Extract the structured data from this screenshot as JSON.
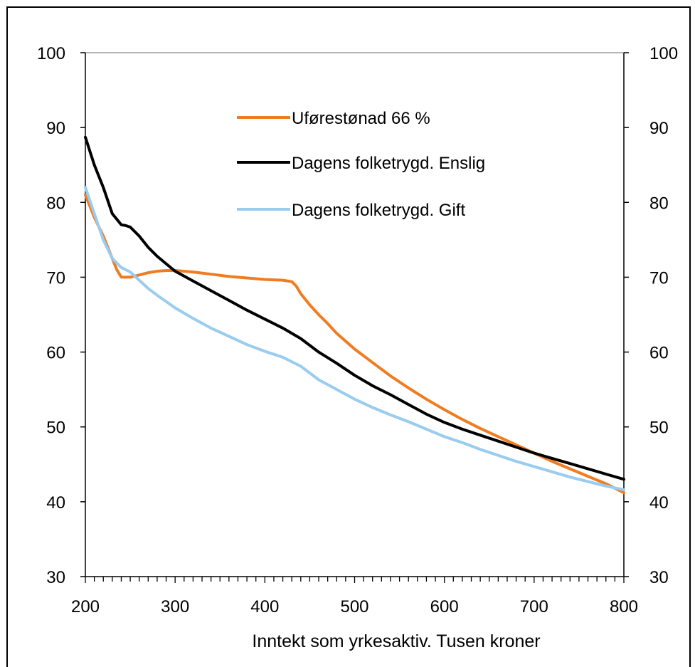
{
  "chart_data": {
    "type": "line",
    "xlabel": "Inntekt som yrkesaktiv. Tusen kroner",
    "ylabel": "",
    "xlim": [
      200,
      800
    ],
    "ylim": [
      30,
      100
    ],
    "x_ticks": [
      200,
      300,
      400,
      500,
      600,
      700,
      800
    ],
    "y_ticks": [
      30,
      40,
      50,
      60,
      70,
      80,
      90,
      100
    ],
    "secondary_y_axis": true,
    "grid": false,
    "legend_position": "top-center",
    "series": [
      {
        "name": "Uførestønad 66 %",
        "color": "#F07C22",
        "x": [
          200,
          210,
          220,
          230,
          235,
          240,
          245,
          250,
          260,
          270,
          280,
          290,
          300,
          320,
          340,
          360,
          380,
          400,
          420,
          430,
          435,
          440,
          450,
          460,
          470,
          480,
          500,
          520,
          540,
          560,
          580,
          600,
          620,
          640,
          660,
          680,
          700,
          720,
          740,
          760,
          780,
          800
        ],
        "values": [
          81.0,
          78.0,
          75.5,
          72.5,
          71.0,
          70.0,
          70.0,
          70.0,
          70.3,
          70.6,
          70.8,
          70.9,
          70.9,
          70.7,
          70.4,
          70.1,
          69.9,
          69.7,
          69.6,
          69.4,
          68.8,
          67.8,
          66.3,
          65.0,
          63.8,
          62.5,
          60.4,
          58.6,
          56.8,
          55.2,
          53.7,
          52.3,
          51.0,
          49.8,
          48.7,
          47.6,
          46.5,
          45.4,
          44.4,
          43.4,
          42.4,
          41.2
        ]
      },
      {
        "name": "Dagens folketrygd. Enslig",
        "color": "#000000",
        "x": [
          200,
          210,
          220,
          230,
          240,
          245,
          250,
          260,
          270,
          280,
          300,
          320,
          340,
          360,
          380,
          400,
          420,
          440,
          460,
          480,
          500,
          520,
          540,
          560,
          580,
          600,
          620,
          640,
          660,
          680,
          700,
          720,
          740,
          760,
          780,
          800
        ],
        "values": [
          88.7,
          85.0,
          82.0,
          78.5,
          77.0,
          76.9,
          76.7,
          75.5,
          74.0,
          72.8,
          70.8,
          69.5,
          68.2,
          66.9,
          65.6,
          64.4,
          63.2,
          61.8,
          60.0,
          58.5,
          56.9,
          55.5,
          54.3,
          53.0,
          51.7,
          50.6,
          49.7,
          48.9,
          48.1,
          47.3,
          46.5,
          45.8,
          45.1,
          44.4,
          43.7,
          43.0
        ]
      },
      {
        "name": "Dagens folketrygd. Gift",
        "color": "#99CCEF",
        "x": [
          200,
          210,
          220,
          230,
          240,
          250,
          260,
          270,
          280,
          300,
          320,
          340,
          360,
          380,
          400,
          420,
          440,
          460,
          480,
          500,
          520,
          540,
          560,
          580,
          600,
          620,
          640,
          660,
          680,
          700,
          720,
          740,
          760,
          780,
          800
        ],
        "values": [
          82.0,
          78.5,
          75.0,
          72.5,
          71.3,
          70.7,
          69.6,
          68.5,
          67.6,
          65.9,
          64.5,
          63.2,
          62.1,
          61.0,
          60.1,
          59.3,
          58.1,
          56.3,
          55.0,
          53.7,
          52.6,
          51.6,
          50.7,
          49.7,
          48.7,
          47.9,
          47.0,
          46.2,
          45.4,
          44.7,
          44.0,
          43.3,
          42.7,
          42.1,
          41.6
        ]
      }
    ]
  }
}
